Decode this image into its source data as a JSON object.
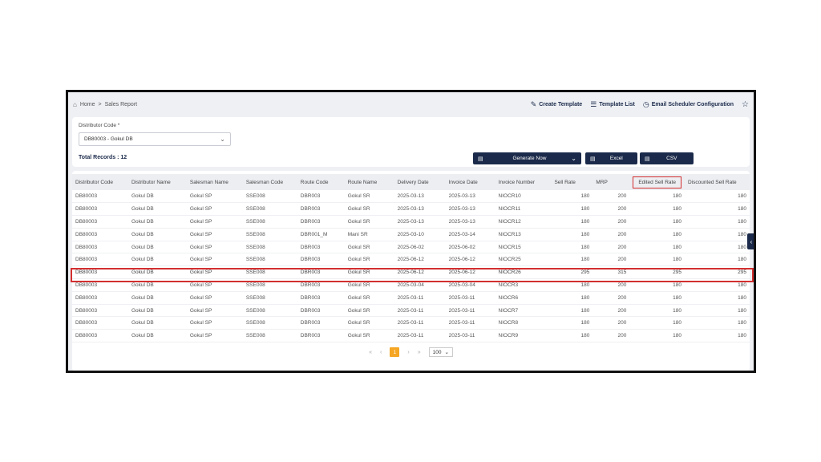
{
  "breadcrumb": {
    "home": "Home",
    "separator": ">",
    "current": "Sales Report"
  },
  "actions": {
    "create_template": "Create Template",
    "template_list": "Template List",
    "email_scheduler": "Email Scheduler Configuration"
  },
  "filter": {
    "label": "Distributor Code *",
    "value": "DB80003 - Gokul DB"
  },
  "total_records": "Total Records : 12",
  "buttons": {
    "generate": "Generate Now",
    "excel": "Excel",
    "csv": "CSV"
  },
  "table": {
    "headers": [
      "Distributor Code",
      "Distributor Name",
      "Salesman Name",
      "Salesman Code",
      "Route Code",
      "Route Name",
      "Delivery Date",
      "Invoice Date",
      "Invoice Number",
      "Sell Rate",
      "MRP",
      "Edited Sell Rate",
      "Discounted Sell Rate"
    ],
    "rows": [
      [
        "DB80003",
        "Gokul DB",
        "Gokul SP",
        "SSE008",
        "DBR003",
        "Gokul SR",
        "2025-03-13",
        "2025-03-13",
        "NIOCR10",
        "180",
        "200",
        "180",
        "180"
      ],
      [
        "DB80003",
        "Gokul DB",
        "Gokul SP",
        "SSE008",
        "DBR003",
        "Gokul SR",
        "2025-03-13",
        "2025-03-13",
        "NIOCR11",
        "180",
        "200",
        "180",
        "180"
      ],
      [
        "DB80003",
        "Gokul DB",
        "Gokul SP",
        "SSE008",
        "DBR003",
        "Gokul SR",
        "2025-03-13",
        "2025-03-13",
        "NIOCR12",
        "180",
        "200",
        "180",
        "180"
      ],
      [
        "DB80003",
        "Gokul DB",
        "Gokul SP",
        "SSE008",
        "DBR001_M",
        "Mani SR",
        "2025-03-10",
        "2025-03-14",
        "NIOCR13",
        "180",
        "200",
        "180",
        "180"
      ],
      [
        "DB80003",
        "Gokul DB",
        "Gokul SP",
        "SSE008",
        "DBR003",
        "Gokul SR",
        "2025-06-02",
        "2025-06-02",
        "NIOCR15",
        "180",
        "200",
        "180",
        "180"
      ],
      [
        "DB80003",
        "Gokul DB",
        "Gokul SP",
        "SSE008",
        "DBR003",
        "Gokul SR",
        "2025-06-12",
        "2025-06-12",
        "NIOCR25",
        "180",
        "200",
        "180",
        "180"
      ],
      [
        "DB80003",
        "Gokul DB",
        "Gokul SP",
        "SSE008",
        "DBR003",
        "Gokul SR",
        "2025-06-12",
        "2025-06-12",
        "NIOCR26",
        "295",
        "315",
        "295",
        "295"
      ],
      [
        "DB80003",
        "Gokul DB",
        "Gokul SP",
        "SSE008",
        "DBR003",
        "Gokul SR",
        "2025-03-04",
        "2025-03-04",
        "NIOCR3",
        "180",
        "200",
        "180",
        "180"
      ],
      [
        "DB80003",
        "Gokul DB",
        "Gokul SP",
        "SSE008",
        "DBR003",
        "Gokul SR",
        "2025-03-11",
        "2025-03-11",
        "NIOCR6",
        "180",
        "200",
        "180",
        "180"
      ],
      [
        "DB80003",
        "Gokul DB",
        "Gokul SP",
        "SSE008",
        "DBR003",
        "Gokul SR",
        "2025-03-11",
        "2025-03-11",
        "NIOCR7",
        "180",
        "200",
        "180",
        "180"
      ],
      [
        "DB80003",
        "Gokul DB",
        "Gokul SP",
        "SSE008",
        "DBR003",
        "Gokul SR",
        "2025-03-11",
        "2025-03-11",
        "NIOCR8",
        "180",
        "200",
        "180",
        "180"
      ],
      [
        "DB80003",
        "Gokul DB",
        "Gokul SP",
        "SSE008",
        "DBR003",
        "Gokul SR",
        "2025-03-11",
        "2025-03-11",
        "NIOCR9",
        "180",
        "200",
        "180",
        "180"
      ]
    ],
    "highlighted_row": 6,
    "highlighted_header": 11
  },
  "pagination": {
    "current_page": "1",
    "page_size": "100"
  },
  "colors": {
    "primary": "#1b2a4a",
    "accent": "#f5a623",
    "highlight": "#d32f2f"
  }
}
